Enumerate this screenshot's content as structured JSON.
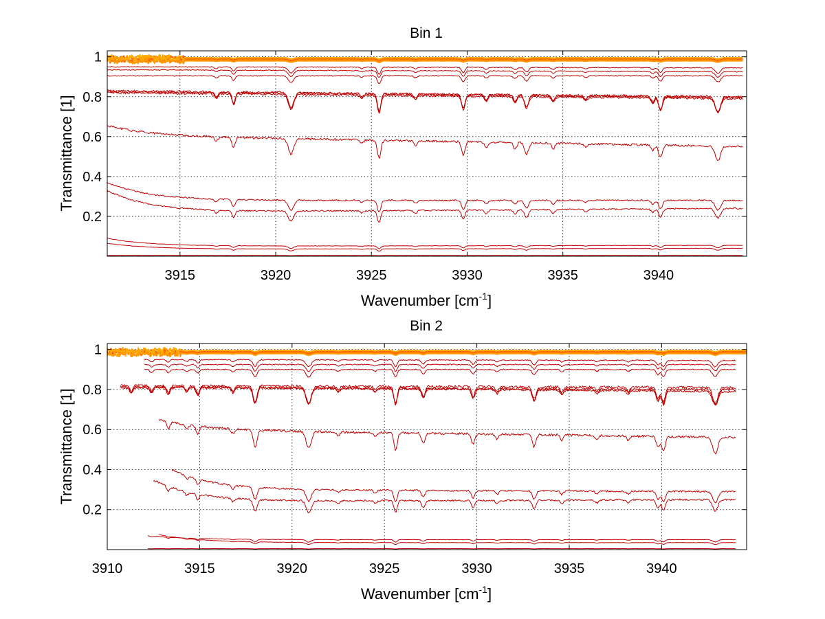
{
  "figure": {
    "background": "#ffffff"
  },
  "chart_data": [
    {
      "type": "line",
      "title": "Bin 1",
      "xlabel_text": "Wavenumber [cm",
      "xlabel_sup": "-1",
      "xlabel_close": "]",
      "ylabel": "Transmittance [1]",
      "xlim": [
        3911.2,
        3944.6
      ],
      "ylim": [
        0,
        1.03
      ],
      "xticks": [
        3915,
        3920,
        3925,
        3930,
        3935,
        3940
      ],
      "xtick_labels": [
        "3915",
        "3920",
        "3925",
        "3930",
        "3935",
        "3940"
      ],
      "yticks": [
        0.2,
        0.4,
        0.6,
        0.8,
        1
      ],
      "ytick_labels": [
        "0.2",
        "0.4",
        "0.6",
        "0.8",
        "1"
      ],
      "grid": true,
      "colors": {
        "main": "#c00000",
        "warm": [
          "#ff5500",
          "#ff7700",
          "#ff9900",
          "#ffaa00"
        ]
      },
      "absorption_lines": [
        {
          "x": 3916.9,
          "depth": 0.25,
          "width": 0.12
        },
        {
          "x": 3917.8,
          "depth": 0.6,
          "width": 0.12
        },
        {
          "x": 3920.8,
          "depth": 0.85,
          "width": 0.2
        },
        {
          "x": 3924.5,
          "depth": 0.2,
          "width": 0.12
        },
        {
          "x": 3925.4,
          "depth": 1.0,
          "width": 0.13
        },
        {
          "x": 3927.3,
          "depth": 0.25,
          "width": 0.12
        },
        {
          "x": 3929.8,
          "depth": 0.75,
          "width": 0.13
        },
        {
          "x": 3931.0,
          "depth": 0.3,
          "width": 0.12
        },
        {
          "x": 3932.5,
          "depth": 0.35,
          "width": 0.12
        },
        {
          "x": 3933.1,
          "depth": 0.65,
          "width": 0.15
        },
        {
          "x": 3934.5,
          "depth": 0.3,
          "width": 0.12
        },
        {
          "x": 3936.2,
          "depth": 0.2,
          "width": 0.12
        },
        {
          "x": 3939.7,
          "depth": 0.3,
          "width": 0.12
        },
        {
          "x": 3940.1,
          "depth": 0.7,
          "width": 0.14
        },
        {
          "x": 3943.1,
          "depth": 0.8,
          "width": 0.2
        }
      ],
      "series": [
        {
          "x0": 3911.2,
          "x1": 3944.4,
          "base0": 0.83,
          "base1": 0.795,
          "decay_amp": 0.0,
          "scale": 0.09,
          "role": "main"
        },
        {
          "x0": 3911.2,
          "x1": 3944.4,
          "base0": 0.82,
          "base1": 0.79,
          "decay_amp": 0.0,
          "scale": 0.085,
          "role": "main"
        },
        {
          "x0": 3911.2,
          "x1": 3944.4,
          "base0": 0.825,
          "base1": 0.8,
          "decay_amp": 0.0,
          "scale": 0.1,
          "role": "main"
        },
        {
          "x0": 3911.2,
          "x1": 3944.4,
          "base0": 0.605,
          "base1": 0.55,
          "decay_amp": 0.05,
          "scale": 0.09,
          "role": "main"
        },
        {
          "x0": 3911.2,
          "x1": 3944.4,
          "base0": 0.28,
          "base1": 0.28,
          "decay_amp": 0.09,
          "scale": 0.06,
          "role": "main"
        },
        {
          "x0": 3911.2,
          "x1": 3944.4,
          "base0": 0.22,
          "base1": 0.24,
          "decay_amp": 0.11,
          "scale": 0.06,
          "role": "main"
        },
        {
          "x0": 3911.2,
          "x1": 3944.4,
          "base0": 0.05,
          "base1": 0.055,
          "decay_amp": 0.04,
          "scale": 0.015,
          "role": "main"
        },
        {
          "x0": 3911.2,
          "x1": 3944.4,
          "base0": 0.035,
          "base1": 0.04,
          "decay_amp": 0.03,
          "scale": 0.012,
          "role": "main"
        },
        {
          "x0": 3911.2,
          "x1": 3944.4,
          "base0": 0.005,
          "base1": 0.005,
          "decay_amp": 0.0,
          "scale": 0.002,
          "role": "main"
        },
        {
          "x0": 3911.2,
          "x1": 3944.4,
          "base0": 0.95,
          "base1": 0.945,
          "decay_amp": 0.0,
          "scale": 0.035,
          "role": "main"
        },
        {
          "x0": 3911.2,
          "x1": 3944.4,
          "base0": 0.935,
          "base1": 0.925,
          "decay_amp": 0.0,
          "scale": 0.035,
          "role": "main"
        },
        {
          "x0": 3911.2,
          "x1": 3944.4,
          "base0": 0.905,
          "base1": 0.905,
          "decay_amp": 0.0,
          "scale": 0.04,
          "role": "main"
        },
        {
          "x0": 3911.2,
          "x1": 3944.4,
          "base0": 0.99,
          "base1": 0.99,
          "decay_amp": 0.0,
          "scale": 0.01,
          "role": "warm"
        },
        {
          "x0": 3911.2,
          "x1": 3944.4,
          "base0": 0.985,
          "base1": 0.985,
          "decay_amp": 0.0,
          "scale": 0.008,
          "role": "warm"
        },
        {
          "x0": 3911.2,
          "x1": 3944.4,
          "base0": 0.98,
          "base1": 0.98,
          "decay_amp": 0.0,
          "scale": 0.008,
          "role": "warm"
        },
        {
          "x0": 3911.2,
          "x1": 3944.4,
          "base0": 0.995,
          "base1": 0.995,
          "decay_amp": 0.0,
          "scale": 0.006,
          "role": "warm"
        }
      ]
    },
    {
      "type": "line",
      "title": "Bin 2",
      "xlabel_text": "Wavenumber [cm",
      "xlabel_sup": "-1",
      "xlabel_close": "]",
      "ylabel": "Transmittance [1]",
      "xlim": [
        3910,
        3944.6
      ],
      "ylim": [
        0,
        1.03
      ],
      "xticks": [
        3910,
        3915,
        3920,
        3925,
        3930,
        3935,
        3940
      ],
      "xtick_labels": [
        "3910",
        "3915",
        "3920",
        "3925",
        "3930",
        "3935",
        "3940"
      ],
      "yticks": [
        0.2,
        0.4,
        0.6,
        0.8,
        1
      ],
      "ytick_labels": [
        "0.2",
        "0.4",
        "0.6",
        "0.8",
        "1"
      ],
      "grid": true,
      "colors": {
        "main": "#c00000",
        "warm": [
          "#ff5500",
          "#ff7700",
          "#ff9900",
          "#ffaa00"
        ]
      },
      "absorption_lines": [
        {
          "x": 3911.3,
          "depth": 0.3,
          "width": 0.12
        },
        {
          "x": 3912.4,
          "depth": 0.3,
          "width": 0.12
        },
        {
          "x": 3913.3,
          "depth": 0.35,
          "width": 0.12
        },
        {
          "x": 3914.3,
          "depth": 0.25,
          "width": 0.12
        },
        {
          "x": 3914.9,
          "depth": 0.4,
          "width": 0.12
        },
        {
          "x": 3916.8,
          "depth": 0.25,
          "width": 0.12
        },
        {
          "x": 3918.0,
          "depth": 0.85,
          "width": 0.15
        },
        {
          "x": 3920.9,
          "depth": 0.85,
          "width": 0.2
        },
        {
          "x": 3922.5,
          "depth": 0.2,
          "width": 0.12
        },
        {
          "x": 3924.5,
          "depth": 0.2,
          "width": 0.12
        },
        {
          "x": 3925.6,
          "depth": 0.85,
          "width": 0.13
        },
        {
          "x": 3927.1,
          "depth": 0.5,
          "width": 0.13
        },
        {
          "x": 3929.8,
          "depth": 0.5,
          "width": 0.13
        },
        {
          "x": 3931.1,
          "depth": 0.25,
          "width": 0.12
        },
        {
          "x": 3933.1,
          "depth": 0.6,
          "width": 0.14
        },
        {
          "x": 3934.6,
          "depth": 0.25,
          "width": 0.12
        },
        {
          "x": 3936.5,
          "depth": 0.2,
          "width": 0.12
        },
        {
          "x": 3938.2,
          "depth": 0.2,
          "width": 0.12
        },
        {
          "x": 3939.8,
          "depth": 0.55,
          "width": 0.13
        },
        {
          "x": 3940.1,
          "depth": 0.75,
          "width": 0.14
        },
        {
          "x": 3942.9,
          "depth": 0.8,
          "width": 0.2
        }
      ],
      "series": [
        {
          "x0": 3910.7,
          "x1": 3944.0,
          "base0": 0.82,
          "base1": 0.81,
          "decay_amp": 0.0,
          "scale": 0.1,
          "role": "main"
        },
        {
          "x0": 3910.7,
          "x1": 3944.0,
          "base0": 0.81,
          "base1": 0.8,
          "decay_amp": 0.0,
          "scale": 0.095,
          "role": "main"
        },
        {
          "x0": 3910.7,
          "x1": 3944.0,
          "base0": 0.815,
          "base1": 0.79,
          "decay_amp": 0.0,
          "scale": 0.09,
          "role": "main"
        },
        {
          "x0": 3912.8,
          "x1": 3944.0,
          "base0": 0.6,
          "base1": 0.56,
          "decay_amp": 0.05,
          "scale": 0.1,
          "role": "main"
        },
        {
          "x0": 3913.5,
          "x1": 3944.0,
          "base0": 0.3,
          "base1": 0.29,
          "decay_amp": 0.1,
          "scale": 0.07,
          "role": "main"
        },
        {
          "x0": 3912.5,
          "x1": 3944.0,
          "base0": 0.24,
          "base1": 0.25,
          "decay_amp": 0.11,
          "scale": 0.07,
          "role": "main"
        },
        {
          "x0": 3912.2,
          "x1": 3944.0,
          "base0": 0.05,
          "base1": 0.05,
          "decay_amp": 0.02,
          "scale": 0.015,
          "role": "main"
        },
        {
          "x0": 3912.8,
          "x1": 3944.0,
          "base0": 0.035,
          "base1": 0.035,
          "decay_amp": 0.04,
          "scale": 0.012,
          "role": "main"
        },
        {
          "x0": 3912.2,
          "x1": 3944.0,
          "base0": 0.005,
          "base1": 0.005,
          "decay_amp": 0.0,
          "scale": 0.002,
          "role": "main"
        },
        {
          "x0": 3912.0,
          "x1": 3944.0,
          "base0": 0.95,
          "base1": 0.945,
          "decay_amp": 0.0,
          "scale": 0.04,
          "role": "main"
        },
        {
          "x0": 3912.0,
          "x1": 3944.0,
          "base0": 0.925,
          "base1": 0.925,
          "decay_amp": 0.0,
          "scale": 0.04,
          "role": "main"
        },
        {
          "x0": 3912.0,
          "x1": 3944.0,
          "base0": 0.9,
          "base1": 0.9,
          "decay_amp": 0.0,
          "scale": 0.045,
          "role": "main"
        },
        {
          "x0": 3910.0,
          "x1": 3944.6,
          "base0": 0.99,
          "base1": 0.99,
          "decay_amp": 0.0,
          "scale": 0.01,
          "role": "warm"
        },
        {
          "x0": 3910.0,
          "x1": 3944.6,
          "base0": 0.985,
          "base1": 0.985,
          "decay_amp": 0.0,
          "scale": 0.01,
          "role": "warm"
        },
        {
          "x0": 3910.0,
          "x1": 3944.6,
          "base0": 0.98,
          "base1": 0.98,
          "decay_amp": 0.0,
          "scale": 0.01,
          "role": "warm"
        },
        {
          "x0": 3910.0,
          "x1": 3944.6,
          "base0": 0.995,
          "base1": 0.995,
          "decay_amp": 0.0,
          "scale": 0.008,
          "role": "warm"
        }
      ]
    }
  ]
}
